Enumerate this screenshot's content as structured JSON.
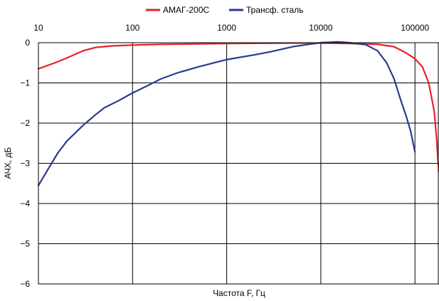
{
  "chart_data": {
    "type": "line",
    "title": "",
    "xlabel": "Частота F, Гц",
    "ylabel": "АЧХ, дБ",
    "xscale": "log",
    "xlim": [
      10,
      180000
    ],
    "ylim": [
      -6,
      0.1
    ],
    "x_ticks": [
      10,
      100,
      1000,
      10000,
      100000
    ],
    "x_tick_labels": [
      "10",
      "100",
      "1000",
      "10000",
      "100000"
    ],
    "y_ticks": [
      0,
      -1,
      -2,
      -3,
      -4,
      -5,
      -6
    ],
    "y_tick_labels": [
      "0",
      "−1",
      "−2",
      "−3",
      "−4",
      "−5",
      "−6"
    ],
    "grid": true,
    "legend_position": "top",
    "series": [
      {
        "name": "АМАГ-200С",
        "color": "#e8222a",
        "points": [
          [
            10,
            -0.65
          ],
          [
            15,
            -0.5
          ],
          [
            20,
            -0.38
          ],
          [
            30,
            -0.2
          ],
          [
            40,
            -0.12
          ],
          [
            60,
            -0.08
          ],
          [
            100,
            -0.06
          ],
          [
            200,
            -0.04
          ],
          [
            500,
            -0.03
          ],
          [
            1000,
            -0.02
          ],
          [
            5000,
            -0.01
          ],
          [
            10000,
            -0.01
          ],
          [
            20000,
            -0.02
          ],
          [
            40000,
            -0.04
          ],
          [
            60000,
            -0.1
          ],
          [
            80000,
            -0.25
          ],
          [
            100000,
            -0.4
          ],
          [
            120000,
            -0.6
          ],
          [
            140000,
            -1.0
          ],
          [
            160000,
            -1.7
          ],
          [
            170000,
            -2.4
          ],
          [
            175000,
            -2.9
          ],
          [
            180000,
            -3.2
          ]
        ]
      },
      {
        "name": "Трансф. сталь",
        "color": "#2b3a8f",
        "points": [
          [
            10,
            -3.55
          ],
          [
            13,
            -3.1
          ],
          [
            16,
            -2.75
          ],
          [
            20,
            -2.45
          ],
          [
            30,
            -2.05
          ],
          [
            40,
            -1.8
          ],
          [
            50,
            -1.62
          ],
          [
            70,
            -1.45
          ],
          [
            100,
            -1.25
          ],
          [
            150,
            -1.05
          ],
          [
            200,
            -0.9
          ],
          [
            300,
            -0.75
          ],
          [
            500,
            -0.6
          ],
          [
            1000,
            -0.42
          ],
          [
            2000,
            -0.3
          ],
          [
            3000,
            -0.22
          ],
          [
            5000,
            -0.1
          ],
          [
            7000,
            -0.05
          ],
          [
            10000,
            0.0
          ],
          [
            15000,
            0.02
          ],
          [
            20000,
            0.0
          ],
          [
            30000,
            -0.05
          ],
          [
            40000,
            -0.2
          ],
          [
            50000,
            -0.5
          ],
          [
            60000,
            -0.9
          ],
          [
            70000,
            -1.4
          ],
          [
            80000,
            -1.8
          ],
          [
            90000,
            -2.2
          ],
          [
            100000,
            -2.72
          ]
        ]
      }
    ]
  }
}
